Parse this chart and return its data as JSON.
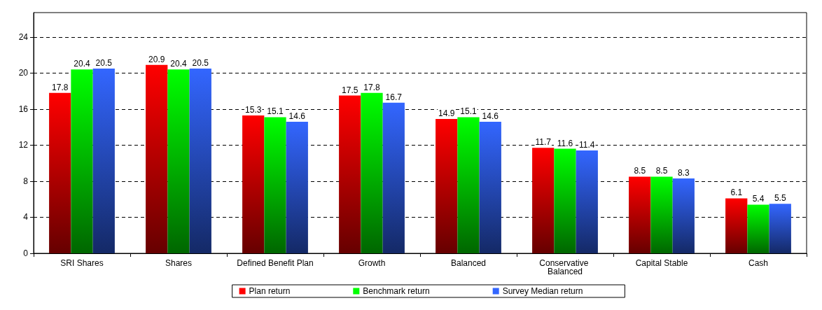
{
  "chart_data": {
    "type": "bar",
    "categories": [
      "SRI Shares",
      "Shares",
      "Defined Benefit Plan",
      "Growth",
      "Balanced",
      "Conservative Balanced",
      "Capital Stable",
      "Cash"
    ],
    "series": [
      {
        "name": "Plan return",
        "color": "#ff0000",
        "values": [
          17.8,
          20.9,
          15.3,
          17.5,
          14.9,
          11.7,
          8.5,
          6.1
        ]
      },
      {
        "name": "Benchmark return",
        "color": "#00ff00",
        "values": [
          20.4,
          20.4,
          15.1,
          17.8,
          15.1,
          11.6,
          8.5,
          5.4
        ]
      },
      {
        "name": "Survey Median return",
        "color": "#3366ff",
        "values": [
          20.5,
          20.5,
          14.6,
          16.7,
          14.6,
          11.4,
          8.3,
          5.5
        ]
      }
    ],
    "ylim": [
      0,
      26.7
    ],
    "yticks": [
      0,
      4,
      8,
      12,
      16,
      20,
      24
    ],
    "grid": "y",
    "legend": "bottom",
    "data_labels": true
  }
}
